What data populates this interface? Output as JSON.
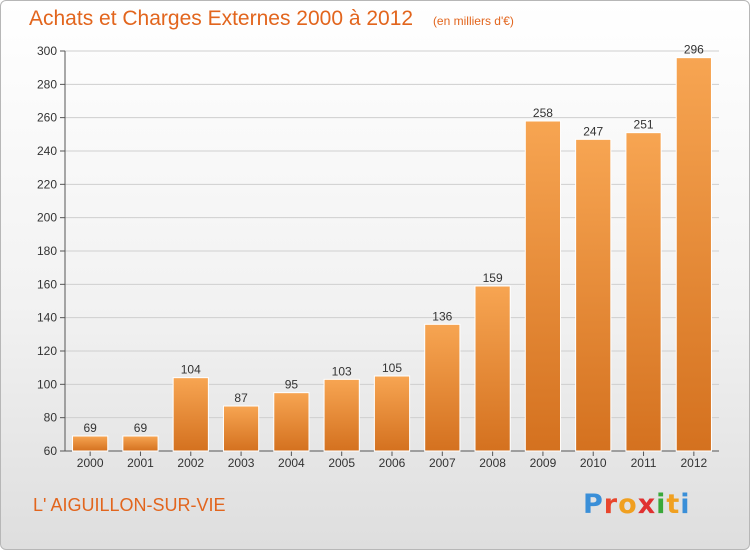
{
  "header": {
    "title": "Achats et Charges Externes 2000 à 2012",
    "unit_note": "(en milliers d'€)"
  },
  "footer": {
    "commune": "L' AIGUILLON-SUR-VIE",
    "logo_letters": [
      "P",
      "r",
      "o",
      "x",
      "i",
      "t",
      "i"
    ],
    "logo_colors": [
      "#3a8fd8",
      "#e8452c",
      "#f0a020",
      "#e03030",
      "#3aa83a",
      "#f0a020",
      "#3a8fd8"
    ]
  },
  "chart_data": {
    "type": "bar",
    "title": "Achats et Charges Externes 2000 à 2012",
    "subtitle": "(en milliers d'€)",
    "xlabel": "",
    "ylabel": "",
    "categories": [
      "2000",
      "2001",
      "2002",
      "2003",
      "2004",
      "2005",
      "2006",
      "2007",
      "2008",
      "2009",
      "2010",
      "2011",
      "2012"
    ],
    "values": [
      69,
      69,
      104,
      87,
      95,
      103,
      105,
      136,
      159,
      258,
      247,
      251,
      296
    ],
    "value_labels": [
      "69",
      "69",
      "104",
      "87",
      "95",
      "103",
      "105",
      "136",
      "159",
      "258",
      "247",
      "251",
      "296"
    ],
    "ylim": [
      60,
      300
    ],
    "yticks": [
      "60",
      "80",
      "100",
      "120",
      "140",
      "160",
      "180",
      "200",
      "220",
      "240",
      "260",
      "280",
      "300"
    ],
    "grid": true,
    "bar_color_top": "#f7a552",
    "bar_color_bottom": "#d4711f"
  }
}
